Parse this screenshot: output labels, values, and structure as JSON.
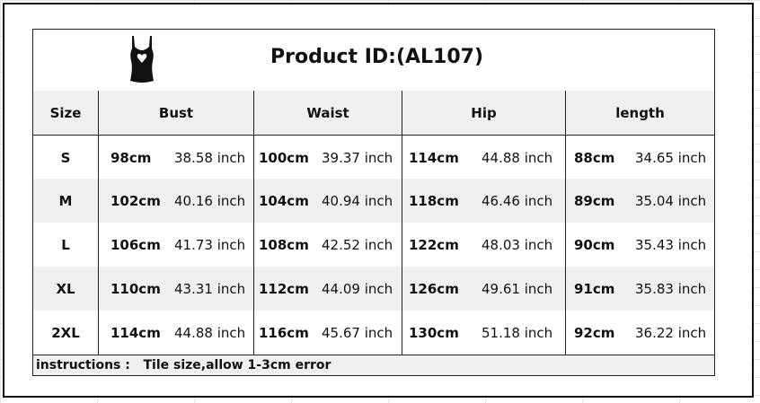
{
  "title": "Product ID:(AL107)",
  "logo_icon": "tank-top-heart-icon",
  "headers": [
    "Size",
    "Bust",
    "Waist",
    "Hip",
    "length"
  ],
  "rows": [
    {
      "size": "S",
      "bust_cm": "98cm",
      "bust_in": "38.58 inch",
      "waist_cm": "100cm",
      "waist_in": "39.37 inch",
      "hip_cm": "114cm",
      "hip_in": "44.88 inch",
      "len_cm": "88cm",
      "len_in": "34.65 inch"
    },
    {
      "size": "M",
      "bust_cm": "102cm",
      "bust_in": "40.16 inch",
      "waist_cm": "104cm",
      "waist_in": "40.94 inch",
      "hip_cm": "118cm",
      "hip_in": "46.46 inch",
      "len_cm": "89cm",
      "len_in": "35.04 inch"
    },
    {
      "size": "L",
      "bust_cm": "106cm",
      "bust_in": "41.73 inch",
      "waist_cm": "108cm",
      "waist_in": "42.52 inch",
      "hip_cm": "122cm",
      "hip_in": "48.03 inch",
      "len_cm": "90cm",
      "len_in": "35.43 inch"
    },
    {
      "size": "XL",
      "bust_cm": "110cm",
      "bust_in": "43.31 inch",
      "waist_cm": "112cm",
      "waist_in": "44.09 inch",
      "hip_cm": "126cm",
      "hip_in": "49.61 inch",
      "len_cm": "91cm",
      "len_in": "35.83 inch"
    },
    {
      "size": "2XL",
      "bust_cm": "114cm",
      "bust_in": "44.88 inch",
      "waist_cm": "116cm",
      "waist_in": "45.67 inch",
      "hip_cm": "130cm",
      "hip_in": "51.18 inch",
      "len_cm": "92cm",
      "len_in": "36.22 inch"
    }
  ],
  "instructions": {
    "label": "instructions :",
    "text": "Tile size,allow 1-3cm error"
  }
}
